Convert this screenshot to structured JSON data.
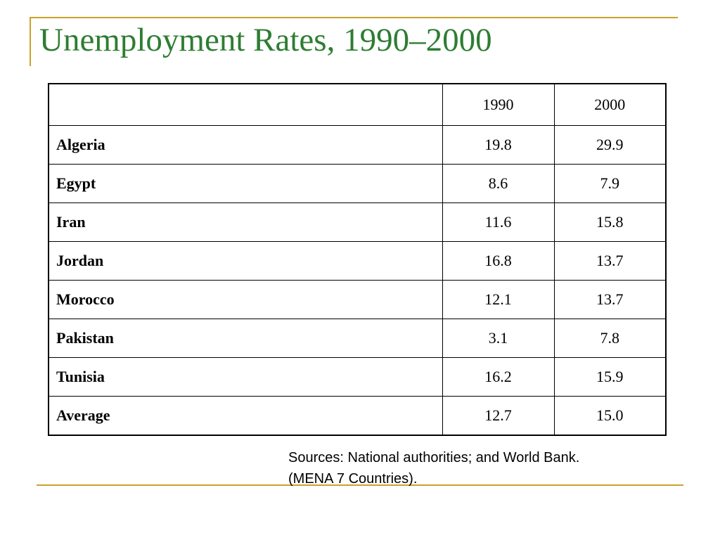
{
  "slide": {
    "title": "Unemployment Rates, 1990–2000",
    "accent_color": "#c9a227",
    "title_color": "#2e7d32"
  },
  "table": {
    "headers": [
      "",
      "1990",
      "2000"
    ],
    "rows": [
      {
        "country": "Algeria",
        "v1990": "19.8",
        "v2000": "29.9"
      },
      {
        "country": "Egypt",
        "v1990": "8.6",
        "v2000": "7.9"
      },
      {
        "country": "Iran",
        "v1990": "11.6",
        "v2000": "15.8"
      },
      {
        "country": "Jordan",
        "v1990": "16.8",
        "v2000": "13.7"
      },
      {
        "country": "Morocco",
        "v1990": "12.1",
        "v2000": "13.7"
      },
      {
        "country": "Pakistan",
        "v1990": "3.1",
        "v2000": "7.8"
      },
      {
        "country": "Tunisia",
        "v1990": "16.2",
        "v2000": "15.9"
      },
      {
        "country": "Average",
        "v1990": "12.7",
        "v2000": "15.0"
      }
    ]
  },
  "source": {
    "line1": "Sources: National authorities; and World Bank.",
    "line2": "(MENA 7 Countries)."
  }
}
